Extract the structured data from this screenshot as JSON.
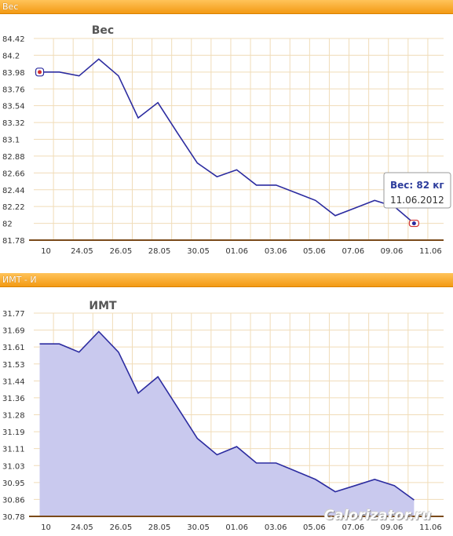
{
  "panels": {
    "weight_header": "Вес",
    "bmi_header": "ИМТ - И"
  },
  "watermark": "Calorizator.ru",
  "colors": {
    "line": "#2c2ca0",
    "area_fill": "#c9c9ee",
    "grid": "#f0dcb8",
    "axis": "#7a4a1a",
    "header_top": "#ffc35a",
    "header_bottom": "#f39a14"
  },
  "chart_data": [
    {
      "type": "line",
      "title": "Вес",
      "y_ticks": [
        "84.42",
        "84.2",
        "83.98",
        "83.76",
        "83.54",
        "83.32",
        "83.1",
        "82.88",
        "82.66",
        "82.44",
        "82.22",
        "82",
        "81.78"
      ],
      "ylim": [
        81.78,
        84.42
      ],
      "x_tick_labels": [
        "10",
        "24.05",
        "26.05",
        "28.05",
        "30.05",
        "01.06",
        "03.06",
        "05.06",
        "07.06",
        "09.06",
        "11.06"
      ],
      "x_day_index": [
        0.62,
        2.45,
        4.42,
        6.38,
        8.35,
        10.31,
        12.28,
        14.24,
        16.21,
        18.17,
        20.14
      ],
      "xlim": [
        0,
        20.8
      ],
      "grid": true,
      "series": [
        {
          "x": [
            0.3,
            1.3,
            2.3,
            3.3,
            4.3,
            5.3,
            6.3,
            7.3,
            8.3,
            9.3,
            10.3,
            11.3,
            12.3,
            13.3,
            14.3,
            15.3,
            16.3,
            17.3,
            18.3,
            19.3
          ],
          "y": [
            83.98,
            83.98,
            83.93,
            84.15,
            83.93,
            83.38,
            83.58,
            83.18,
            82.79,
            82.61,
            82.7,
            82.5,
            82.5,
            82.4,
            82.3,
            82.1,
            82.2,
            82.3,
            82.22,
            82.0
          ]
        }
      ],
      "tooltip": {
        "title": "Вес: 82 кг",
        "date": "11.06.2012"
      }
    },
    {
      "type": "area",
      "title": "ИМТ",
      "y_ticks": [
        "31.77",
        "31.69",
        "31.61",
        "31.53",
        "31.44",
        "31.36",
        "31.28",
        "31.19",
        "31.11",
        "31.03",
        "30.95",
        "30.86",
        "30.78"
      ],
      "ylim": [
        30.78,
        31.77
      ],
      "x_tick_labels": [
        "10",
        "24.05",
        "26.05",
        "28.05",
        "30.05",
        "01.06",
        "03.06",
        "05.06",
        "07.06",
        "09.06",
        "11.06"
      ],
      "x_day_index": [
        0.62,
        2.45,
        4.42,
        6.38,
        8.35,
        10.31,
        12.28,
        14.24,
        16.21,
        18.17,
        20.14
      ],
      "xlim": [
        0,
        20.8
      ],
      "grid": true,
      "series": [
        {
          "x": [
            0.3,
            1.3,
            2.3,
            3.3,
            4.3,
            5.3,
            6.3,
            7.3,
            8.3,
            9.3,
            10.3,
            11.3,
            12.3,
            13.3,
            14.3,
            15.3,
            16.3,
            17.3,
            18.3,
            19.3
          ],
          "y": [
            31.62,
            31.62,
            31.58,
            31.68,
            31.58,
            31.38,
            31.46,
            31.31,
            31.16,
            31.08,
            31.12,
            31.04,
            31.04,
            31.0,
            30.96,
            30.9,
            30.93,
            30.96,
            30.93,
            30.86
          ]
        }
      ]
    }
  ]
}
